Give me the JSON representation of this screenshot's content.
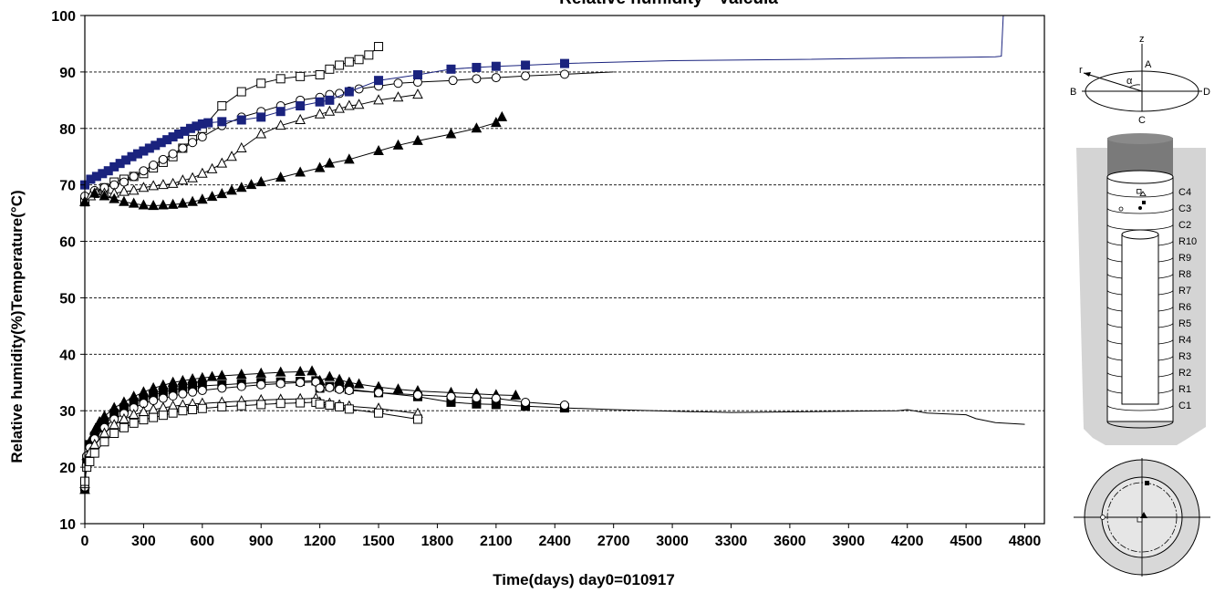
{
  "chart_data": {
    "type": "line",
    "title": "Relative humidity - Valcuia",
    "xlabel": "Time(days) day0=010917",
    "ylabel": "Relative humidity(%)Temperature(°C)",
    "xlim": [
      0,
      4900
    ],
    "ylim": [
      10,
      100
    ],
    "x_ticks": [
      "0",
      "300",
      "600",
      "900",
      "1200",
      "1500",
      "1800",
      "2100",
      "2400",
      "2700",
      "3000",
      "3300",
      "3600",
      "3900",
      "4200",
      "4500",
      "4800"
    ],
    "y_ticks": [
      "10",
      "20",
      "30",
      "40",
      "50",
      "60",
      "70",
      "80",
      "90",
      "100"
    ],
    "grid": "horizontal dashed",
    "series": [
      {
        "group": "humidity",
        "marker": "open-square",
        "color": "#000000",
        "x": [
          0,
          50,
          100,
          150,
          200,
          250,
          300,
          350,
          400,
          450,
          500,
          550,
          600,
          700,
          800,
          900,
          1000,
          1100,
          1200,
          1250,
          1300,
          1350,
          1400,
          1450,
          1500
        ],
        "y": [
          67,
          68.5,
          69.5,
          70.5,
          71,
          71.5,
          72,
          73,
          74,
          75,
          76.5,
          78,
          80,
          84,
          86.5,
          88,
          88.8,
          89.2,
          89.5,
          90.5,
          91.2,
          91.8,
          92.2,
          93,
          94.5
        ]
      },
      {
        "group": "humidity",
        "marker": "open-circle",
        "color": "#000000",
        "x": [
          0,
          50,
          100,
          150,
          200,
          250,
          300,
          350,
          400,
          450,
          500,
          550,
          600,
          700,
          800,
          900,
          1000,
          1100,
          1200,
          1250,
          1300,
          1350,
          1400,
          1500,
          1600,
          1700,
          1880,
          2000,
          2100,
          2250,
          2450,
          2700
        ],
        "y": [
          68,
          69,
          69.5,
          70,
          70.5,
          71.5,
          72.5,
          73.5,
          74.5,
          75.5,
          76.5,
          77.5,
          78.5,
          80.5,
          82,
          83,
          84,
          85,
          85.5,
          86,
          86.2,
          86.6,
          87,
          87.5,
          88,
          88.2,
          88.5,
          88.8,
          89,
          89.3,
          89.6,
          90
        ]
      },
      {
        "group": "humidity",
        "marker": "filled-square",
        "color": "#1a237e",
        "x": [
          0,
          30,
          60,
          90,
          120,
          150,
          180,
          210,
          240,
          270,
          300,
          330,
          360,
          390,
          420,
          450,
          480,
          510,
          540,
          570,
          600,
          630,
          700,
          800,
          900,
          1000,
          1100,
          1200,
          1250,
          1350,
          1500,
          1700,
          1870,
          2000,
          2100,
          2250,
          2450,
          3000,
          3600,
          4200,
          4500,
          4650,
          4680,
          4690
        ],
        "y": [
          70,
          71,
          71.5,
          72,
          72.5,
          73.2,
          73.8,
          74.4,
          75,
          75.5,
          76,
          76.5,
          77,
          77.5,
          78,
          78.5,
          79,
          79.5,
          80,
          80.4,
          80.8,
          81,
          81.2,
          81.5,
          82,
          83,
          84,
          84.7,
          85,
          86.5,
          88.5,
          89.5,
          90.5,
          90.8,
          91,
          91.2,
          91.5,
          92,
          92.2,
          92.5,
          92.6,
          92.7,
          92.8,
          100
        ]
      },
      {
        "group": "humidity",
        "marker": "open-triangle",
        "color": "#000000",
        "x": [
          0,
          30,
          60,
          100,
          150,
          200,
          250,
          300,
          350,
          400,
          450,
          500,
          550,
          600,
          650,
          700,
          750,
          800,
          900,
          1000,
          1100,
          1200,
          1250,
          1300,
          1350,
          1400,
          1500,
          1600,
          1700
        ],
        "y": [
          67,
          68,
          68.5,
          68.5,
          68.5,
          68.8,
          69,
          69.5,
          69.8,
          70,
          70.2,
          70.8,
          71.2,
          72,
          72.8,
          73.8,
          75,
          76.5,
          79,
          80.5,
          81.5,
          82.5,
          83,
          83.5,
          84,
          84.2,
          85,
          85.5,
          86
        ]
      },
      {
        "group": "humidity",
        "marker": "filled-triangle",
        "color": "#000000",
        "x": [
          0,
          50,
          100,
          150,
          200,
          250,
          300,
          350,
          400,
          450,
          500,
          550,
          600,
          650,
          700,
          750,
          800,
          850,
          900,
          1000,
          1100,
          1200,
          1250,
          1350,
          1500,
          1600,
          1700,
          1870,
          2000,
          2100,
          2130
        ],
        "y": [
          67,
          68.5,
          68,
          67.5,
          67,
          66.7,
          66.4,
          66.3,
          66.4,
          66.5,
          66.7,
          67,
          67.4,
          67.9,
          68.4,
          69,
          69.5,
          70,
          70.5,
          71.3,
          72.2,
          73,
          73.8,
          74.5,
          76,
          77,
          77.8,
          79,
          80,
          81,
          82
        ]
      },
      {
        "group": "temperature",
        "marker": "filled-triangle",
        "color": "#000000",
        "x": [
          0,
          10,
          25,
          50,
          75,
          100,
          150,
          200,
          250,
          300,
          350,
          400,
          450,
          500,
          550,
          600,
          650,
          700,
          800,
          900,
          1000,
          1100,
          1160,
          1200,
          1250,
          1300,
          1350,
          1400,
          1500,
          1600,
          1700,
          1870,
          2000,
          2100,
          2200
        ],
        "y": [
          16,
          22,
          24.5,
          26.5,
          28,
          29,
          30.5,
          31.5,
          32.5,
          33.3,
          34,
          34.5,
          35,
          35.3,
          35.6,
          35.8,
          36,
          36.2,
          36.4,
          36.6,
          36.8,
          36.9,
          37,
          35.3,
          36,
          35.5,
          35,
          34.7,
          34.2,
          33.8,
          33.5,
          33.2,
          33,
          32.8,
          32.7
        ]
      },
      {
        "group": "temperature",
        "marker": "filled-square",
        "color": "#000000",
        "x": [
          0,
          10,
          25,
          50,
          75,
          100,
          150,
          200,
          250,
          300,
          350,
          400,
          450,
          500,
          550,
          600,
          700,
          800,
          900,
          1000,
          1100,
          1180,
          1200,
          1250,
          1300,
          1350,
          1500,
          1700,
          1870,
          2000,
          2100,
          2250,
          2450,
          2700,
          3000,
          3300,
          3600,
          3900,
          4150,
          4200,
          4300,
          4500,
          4550,
          4650,
          4800
        ],
        "y": [
          16.5,
          21.5,
          24,
          25.5,
          27,
          28,
          29.5,
          30.5,
          31.5,
          32.2,
          32.8,
          33.3,
          33.7,
          34,
          34.2,
          34.4,
          34.6,
          34.8,
          35,
          35.1,
          35.2,
          35.3,
          34,
          34.3,
          34.1,
          33.8,
          33.2,
          32.5,
          31.5,
          31.2,
          31.1,
          30.8,
          30.5,
          30.2,
          29.9,
          29.7,
          29.8,
          29.9,
          30,
          30.2,
          29.6,
          29.3,
          28.6,
          27.9,
          27.6
        ]
      },
      {
        "group": "temperature",
        "marker": "open-circle",
        "color": "#000000",
        "x": [
          0,
          10,
          25,
          50,
          100,
          150,
          200,
          250,
          300,
          350,
          400,
          450,
          500,
          550,
          600,
          700,
          800,
          900,
          1000,
          1100,
          1180,
          1200,
          1250,
          1300,
          1350,
          1500,
          1700,
          1870,
          2000,
          2100,
          2250,
          2450
        ],
        "y": [
          16.5,
          22,
          23.5,
          25,
          27,
          28.5,
          29.5,
          30.5,
          31.3,
          31.8,
          32.2,
          32.6,
          33,
          33.3,
          33.6,
          34,
          34.3,
          34.6,
          34.8,
          35,
          35.1,
          34,
          34.1,
          33.8,
          33.6,
          33.2,
          32.8,
          32.5,
          32.3,
          32.2,
          31.5,
          31
        ]
      },
      {
        "group": "temperature",
        "marker": "open-triangle",
        "color": "#000000",
        "x": [
          0,
          10,
          25,
          50,
          100,
          150,
          200,
          250,
          300,
          350,
          400,
          450,
          500,
          550,
          600,
          700,
          800,
          900,
          1000,
          1100,
          1180,
          1200,
          1250,
          1300,
          1350,
          1500,
          1700
        ],
        "y": [
          17,
          21,
          22.5,
          24,
          26,
          27.5,
          28.5,
          29.3,
          29.8,
          30.2,
          30.5,
          30.8,
          31,
          31.2,
          31.3,
          31.5,
          31.7,
          31.9,
          32,
          32.1,
          32.2,
          31.5,
          31.3,
          31,
          30.8,
          30.4,
          29.5
        ]
      },
      {
        "group": "temperature",
        "marker": "open-square",
        "color": "#000000",
        "x": [
          0,
          10,
          25,
          50,
          100,
          150,
          200,
          250,
          300,
          350,
          400,
          450,
          500,
          550,
          600,
          700,
          800,
          900,
          1000,
          1100,
          1180,
          1200,
          1250,
          1300,
          1350,
          1500,
          1700
        ],
        "y": [
          17.5,
          20,
          21,
          22.5,
          24.5,
          26,
          27,
          27.8,
          28.4,
          28.8,
          29.2,
          29.6,
          30,
          30.2,
          30.4,
          30.7,
          30.9,
          31.1,
          31.3,
          31.4,
          31.5,
          31.2,
          31,
          30.7,
          30.3,
          29.6,
          28.5
        ]
      }
    ]
  },
  "diagram": {
    "axis_labels": [
      "z",
      "A",
      "B",
      "C",
      "D",
      "r",
      "α"
    ],
    "ring_labels": [
      "C4",
      "C3",
      "C2",
      "R10",
      "R9",
      "R8",
      "R7",
      "R6",
      "R5",
      "R4",
      "R3",
      "R2",
      "R1",
      "C1"
    ]
  }
}
